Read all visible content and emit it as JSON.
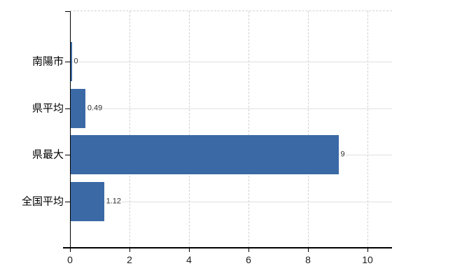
{
  "chart_data": {
    "type": "bar",
    "orientation": "horizontal",
    "title": "",
    "xlabel": "",
    "ylabel": "",
    "categories": [
      "南陽市",
      "県平均",
      "県最大",
      "全国平均"
    ],
    "values": [
      0,
      0.49,
      9,
      1.12
    ],
    "value_labels": [
      "0",
      "0.49",
      "9",
      "1.12"
    ],
    "xticks": [
      0,
      2,
      4,
      6,
      8,
      10
    ],
    "xtick_labels": [
      "0",
      "2",
      "4",
      "6",
      "8",
      "10"
    ],
    "xlim": [
      0,
      10.8
    ],
    "grid": true,
    "legend": false,
    "bar_color": "#3a69a5"
  },
  "colors": {
    "bar": "#3a69a5",
    "axis": "#000000",
    "grid_horizontal": "#dde3dd",
    "grid_vertical": "#d2d2d4",
    "category_label": "#000000",
    "value_label": "#2e2e2e",
    "tick_label": "#1d1d1f",
    "background": "#ffffff"
  }
}
